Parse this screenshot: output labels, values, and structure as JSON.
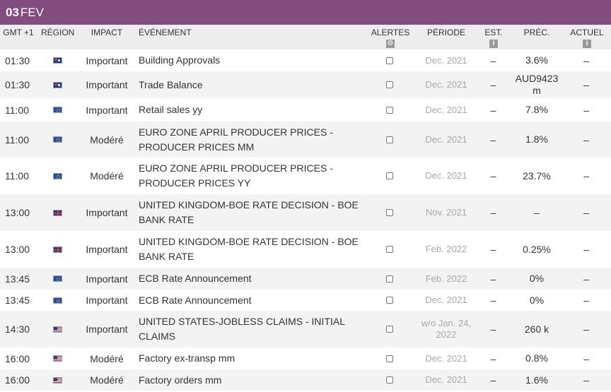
{
  "date_bar": {
    "day": "03",
    "month": "FEV"
  },
  "columns": {
    "time": "GMT +1",
    "region": "RÉGION",
    "impact": "IMPACT",
    "event": "ÉVÉNEMENT",
    "alerts": "ALERTES",
    "period": "PÉRIODE",
    "est": "EST.",
    "prec": "PRÉC.",
    "actual": "ACTUEL"
  },
  "icons": {
    "alerts_header": "gear-icon",
    "est_header": "info-icon",
    "actual_header": "info-icon"
  },
  "colors": {
    "date_bar": "#824c7e",
    "header_bg": "#ededed",
    "alt_row": "#f3f3f3",
    "period_text": "#a8a8a8"
  },
  "rows": [
    {
      "time": "01:30",
      "region": "AU",
      "impact": "Important",
      "event": "Building Approvals",
      "period": "Dec. 2021",
      "est": "–",
      "prec": "3.6%",
      "actual": "–"
    },
    {
      "time": "01:30",
      "region": "AU",
      "impact": "Important",
      "event": "Trade Balance",
      "period": "Dec. 2021",
      "est": "–",
      "prec": "AUD9423 m",
      "actual": "–"
    },
    {
      "time": "11:00",
      "region": "EU",
      "impact": "Important",
      "event": "Retail sales yy",
      "period": "Dec. 2021",
      "est": "–",
      "prec": "7.8%",
      "actual": "–"
    },
    {
      "time": "11:00",
      "region": "EU",
      "impact": "Modéré",
      "event": "EURO ZONE APRIL PRODUCER PRICES - PRODUCER PRICES MM",
      "period": "Dec. 2021",
      "est": "–",
      "prec": "1.8%",
      "actual": "–"
    },
    {
      "time": "11:00",
      "region": "EU",
      "impact": "Modéré",
      "event": "EURO ZONE APRIL PRODUCER PRICES - PRODUCER PRICES YY",
      "period": "Dec. 2021",
      "est": "–",
      "prec": "23.7%",
      "actual": "–"
    },
    {
      "time": "13:00",
      "region": "GB",
      "impact": "Important",
      "event": "UNITED KINGDOM-BOE RATE DECISION - BOE BANK RATE",
      "period": "Nov. 2021",
      "est": "–",
      "prec": "–",
      "actual": "–"
    },
    {
      "time": "13:00",
      "region": "GB",
      "impact": "Important",
      "event": "UNITED KINGDOM-BOE RATE DECISION - BOE BANK RATE",
      "period": "Feb. 2022",
      "est": "–",
      "prec": "0.25%",
      "actual": "–"
    },
    {
      "time": "13:45",
      "region": "EU",
      "impact": "Important",
      "event": "ECB Rate Announcement",
      "period": "Feb. 2022",
      "est": "–",
      "prec": "0%",
      "actual": "–"
    },
    {
      "time": "13:45",
      "region": "EU",
      "impact": "Important",
      "event": "ECB Rate Announcement",
      "period": "Dec. 2021",
      "est": "–",
      "prec": "0%",
      "actual": "–"
    },
    {
      "time": "14:30",
      "region": "US",
      "impact": "Important",
      "event": "UNITED STATES-JOBLESS CLAIMS - INITIAL CLAIMS",
      "period": "w/o Jan. 24, 2022",
      "est": "–",
      "prec": "260 k",
      "actual": "–"
    },
    {
      "time": "16:00",
      "region": "US",
      "impact": "Modéré",
      "event": "Factory ex-transp mm",
      "period": "Dec. 2021",
      "est": "–",
      "prec": "0.8%",
      "actual": "–"
    },
    {
      "time": "16:00",
      "region": "US",
      "impact": "Modéré",
      "event": "Factory orders mm",
      "period": "Dec. 2021",
      "est": "–",
      "prec": "1.6%",
      "actual": "–"
    }
  ]
}
